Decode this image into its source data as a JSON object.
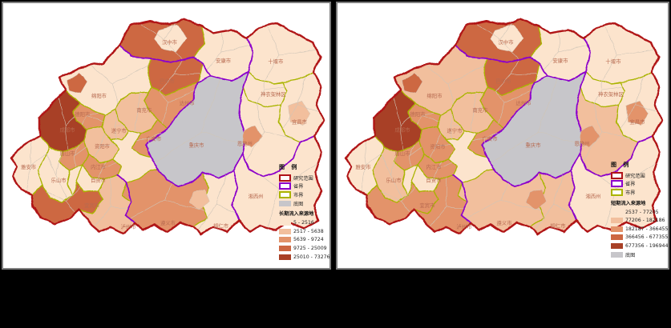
{
  "figure": {
    "background_color": "#000000",
    "panel_border_color": "#7f7f7f",
    "panel_background": "#ffffff"
  },
  "colors": {
    "study_area_border": "#b01218",
    "province_border": "#8d00cc",
    "city_border": "#aab400",
    "district_border": "#cfc5b8",
    "base_map_fill": "#c7c6ca",
    "city_label": "#b76a50",
    "choropleth": [
      "#fce4cd",
      "#f2bf9d",
      "#e3936a",
      "#cd6742",
      "#a84026"
    ]
  },
  "maps": [
    {
      "id": "long_term",
      "legend": {
        "title": "图 例",
        "rows": [
          {
            "kind": "outline",
            "name": "study-area-extent",
            "color": "#b01218",
            "label": "研究范围"
          },
          {
            "kind": "outline",
            "name": "province-boundary",
            "color": "#8d00cc",
            "label": "省界"
          },
          {
            "kind": "outline",
            "name": "city-boundary",
            "color": "#aab400",
            "label": "市界"
          },
          {
            "kind": "fill",
            "name": "base-map",
            "color": "#c7c6ca",
            "label": "底图"
          },
          {
            "kind": "subtitle",
            "name": "class-title",
            "label": "长期流入来源地"
          },
          {
            "kind": "class",
            "name": "class-1",
            "level": 1,
            "label": "5 - 2516"
          },
          {
            "kind": "class",
            "name": "class-2",
            "level": 2,
            "label": "2517 - 5638"
          },
          {
            "kind": "class",
            "name": "class-3",
            "level": 3,
            "label": "5639 - 9724"
          },
          {
            "kind": "class",
            "name": "class-4",
            "level": 4,
            "label": "9725 - 25009"
          },
          {
            "kind": "class",
            "name": "class-5",
            "level": 5,
            "label": "25010 - 73276"
          }
        ]
      }
    },
    {
      "id": "short_term",
      "legend": {
        "title": "图 例",
        "rows": [
          {
            "kind": "outline",
            "name": "study-area-extent",
            "color": "#b01218",
            "label": "研究范围"
          },
          {
            "kind": "outline",
            "name": "province-boundary",
            "color": "#8d00cc",
            "label": "省界"
          },
          {
            "kind": "outline",
            "name": "city-boundary",
            "color": "#aab400",
            "label": "市界"
          },
          {
            "kind": "subtitle",
            "name": "class-title",
            "label": "短期流入来源地"
          },
          {
            "kind": "class",
            "name": "class-1",
            "level": 1,
            "label": "2537 - 77205"
          },
          {
            "kind": "class",
            "name": "class-2",
            "level": 2,
            "label": "77206 - 182186"
          },
          {
            "kind": "class",
            "name": "class-3",
            "level": 3,
            "label": "182187 - 366455"
          },
          {
            "kind": "class",
            "name": "class-4",
            "level": 4,
            "label": "366456 - 677355"
          },
          {
            "kind": "class",
            "name": "class-5",
            "level": 5,
            "label": "677356 - 1969440"
          },
          {
            "kind": "fill",
            "name": "base-map",
            "color": "#c7c6ca",
            "label": "底图"
          }
        ]
      }
    }
  ],
  "cities": [
    {
      "id": "hanzhong",
      "name": "汉中市",
      "levels": {
        "long_term": 4,
        "short_term": 4
      }
    },
    {
      "id": "ankang",
      "name": "安康市",
      "levels": {
        "long_term": 1,
        "short_term": 1
      }
    },
    {
      "id": "shiyan",
      "name": "十堰市",
      "levels": {
        "long_term": 1,
        "short_term": 1
      }
    },
    {
      "id": "shennongjia",
      "name": "神农架林区",
      "levels": {
        "long_term": 1,
        "short_term": 1
      }
    },
    {
      "id": "yichang",
      "name": "宜昌市",
      "levels": {
        "long_term": 1,
        "short_term": 1
      }
    },
    {
      "id": "enshi",
      "name": "恩施州",
      "levels": {
        "long_term": 1,
        "short_term": 2
      }
    },
    {
      "id": "xiangxi",
      "name": "湘西州",
      "levels": {
        "long_term": 1,
        "short_term": 1
      }
    },
    {
      "id": "bazhong",
      "name": "巴中市",
      "levels": {
        "long_term": 4,
        "short_term": 4
      }
    },
    {
      "id": "dazhou",
      "name": "达州市",
      "levels": {
        "long_term": 3,
        "short_term": 3
      }
    },
    {
      "id": "nanchong",
      "name": "南充市",
      "levels": {
        "long_term": 2,
        "short_term": 2
      }
    },
    {
      "id": "guangan",
      "name": "广安市",
      "levels": {
        "long_term": 3,
        "short_term": 3
      }
    },
    {
      "id": "mianyang",
      "name": "绵阳市",
      "levels": {
        "long_term": 1,
        "short_term": 2
      }
    },
    {
      "id": "deyang",
      "name": "德阳市",
      "levels": {
        "long_term": 3,
        "short_term": 3
      }
    },
    {
      "id": "chengdu",
      "name": "成都市",
      "levels": {
        "long_term": 5,
        "short_term": 5
      }
    },
    {
      "id": "suining",
      "name": "遂宁市",
      "levels": {
        "long_term": 2,
        "short_term": 2
      }
    },
    {
      "id": "ziyang",
      "name": "资阳市",
      "levels": {
        "long_term": 2,
        "short_term": 3
      }
    },
    {
      "id": "meishan",
      "name": "眉山市",
      "levels": {
        "long_term": 3,
        "short_term": 3
      }
    },
    {
      "id": "yaan",
      "name": "雅安市",
      "levels": {
        "long_term": 1,
        "short_term": 1
      }
    },
    {
      "id": "leshan",
      "name": "乐山市",
      "levels": {
        "long_term": 1,
        "short_term": 2
      }
    },
    {
      "id": "neijiang",
      "name": "内江市",
      "levels": {
        "long_term": 3,
        "short_term": 3
      }
    },
    {
      "id": "zigong",
      "name": "自贡市",
      "levels": {
        "long_term": 1,
        "short_term": 1
      }
    },
    {
      "id": "yibin",
      "name": "宜宾市",
      "levels": {
        "long_term": 4,
        "short_term": 3
      }
    },
    {
      "id": "luzhou",
      "name": "泸州市",
      "levels": {
        "long_term": 2,
        "short_term": 3
      }
    },
    {
      "id": "zunyi",
      "name": "遵义市",
      "levels": {
        "long_term": 3,
        "short_term": 2
      }
    },
    {
      "id": "tongren",
      "name": "铜仁市",
      "levels": {
        "long_term": 1,
        "short_term": 2
      }
    },
    {
      "id": "chongqing",
      "name": "重庆市",
      "levels": {
        "long_term": 0,
        "short_term": 0
      }
    }
  ],
  "district_patches": [
    {
      "id": "hanzhong-east",
      "levels": {
        "long_term": 1,
        "short_term": 1
      }
    },
    {
      "id": "mianyang-west",
      "levels": {
        "long_term": 4,
        "short_term": 4
      }
    },
    {
      "id": "enshi-west",
      "levels": {
        "long_term": 3,
        "short_term": 3
      }
    },
    {
      "id": "zunyi-east",
      "levels": {
        "long_term": 2,
        "short_term": 3
      }
    },
    {
      "id": "yichang-core",
      "levels": {
        "long_term": 2,
        "short_term": 3
      }
    }
  ]
}
